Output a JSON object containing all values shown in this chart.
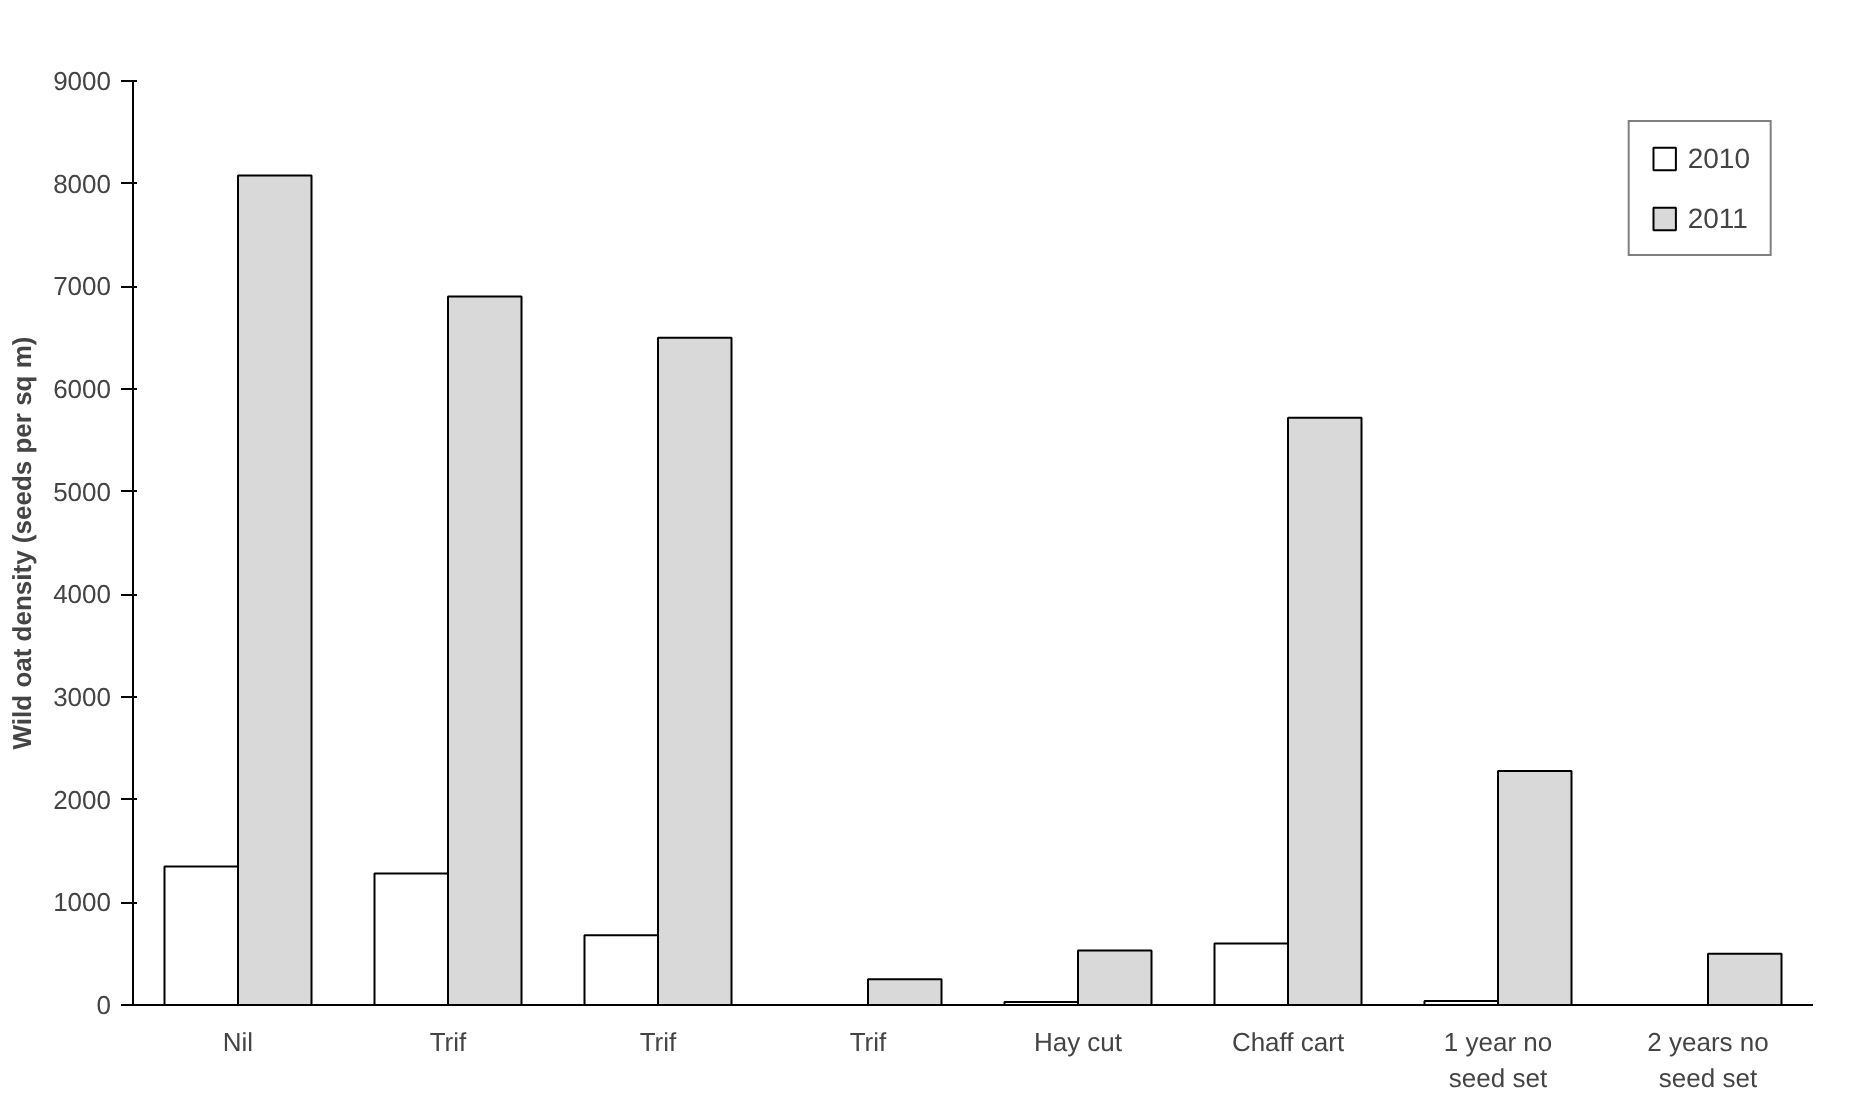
{
  "chart_data": {
    "type": "bar",
    "ylabel": "Wild oat density (seeds per sq m)",
    "categories": [
      "Nil",
      "Trif",
      "Trif",
      "Trif",
      "Hay cut",
      "Chaff cart",
      "1 year no seed set",
      "2 years no seed set"
    ],
    "series": [
      {
        "name": "2010",
        "color": "#ffffff",
        "values": [
          1350,
          1280,
          680,
          null,
          30,
          600,
          40,
          null
        ]
      },
      {
        "name": "2011",
        "color": "#d9d9d9",
        "values": [
          8080,
          6900,
          6500,
          250,
          530,
          5720,
          2280,
          500
        ]
      }
    ],
    "ylim": [
      0,
      9000
    ],
    "yticks": [
      0,
      1000,
      2000,
      3000,
      4000,
      5000,
      6000,
      7000,
      8000,
      9000
    ],
    "grid": false,
    "legend": "top right"
  }
}
